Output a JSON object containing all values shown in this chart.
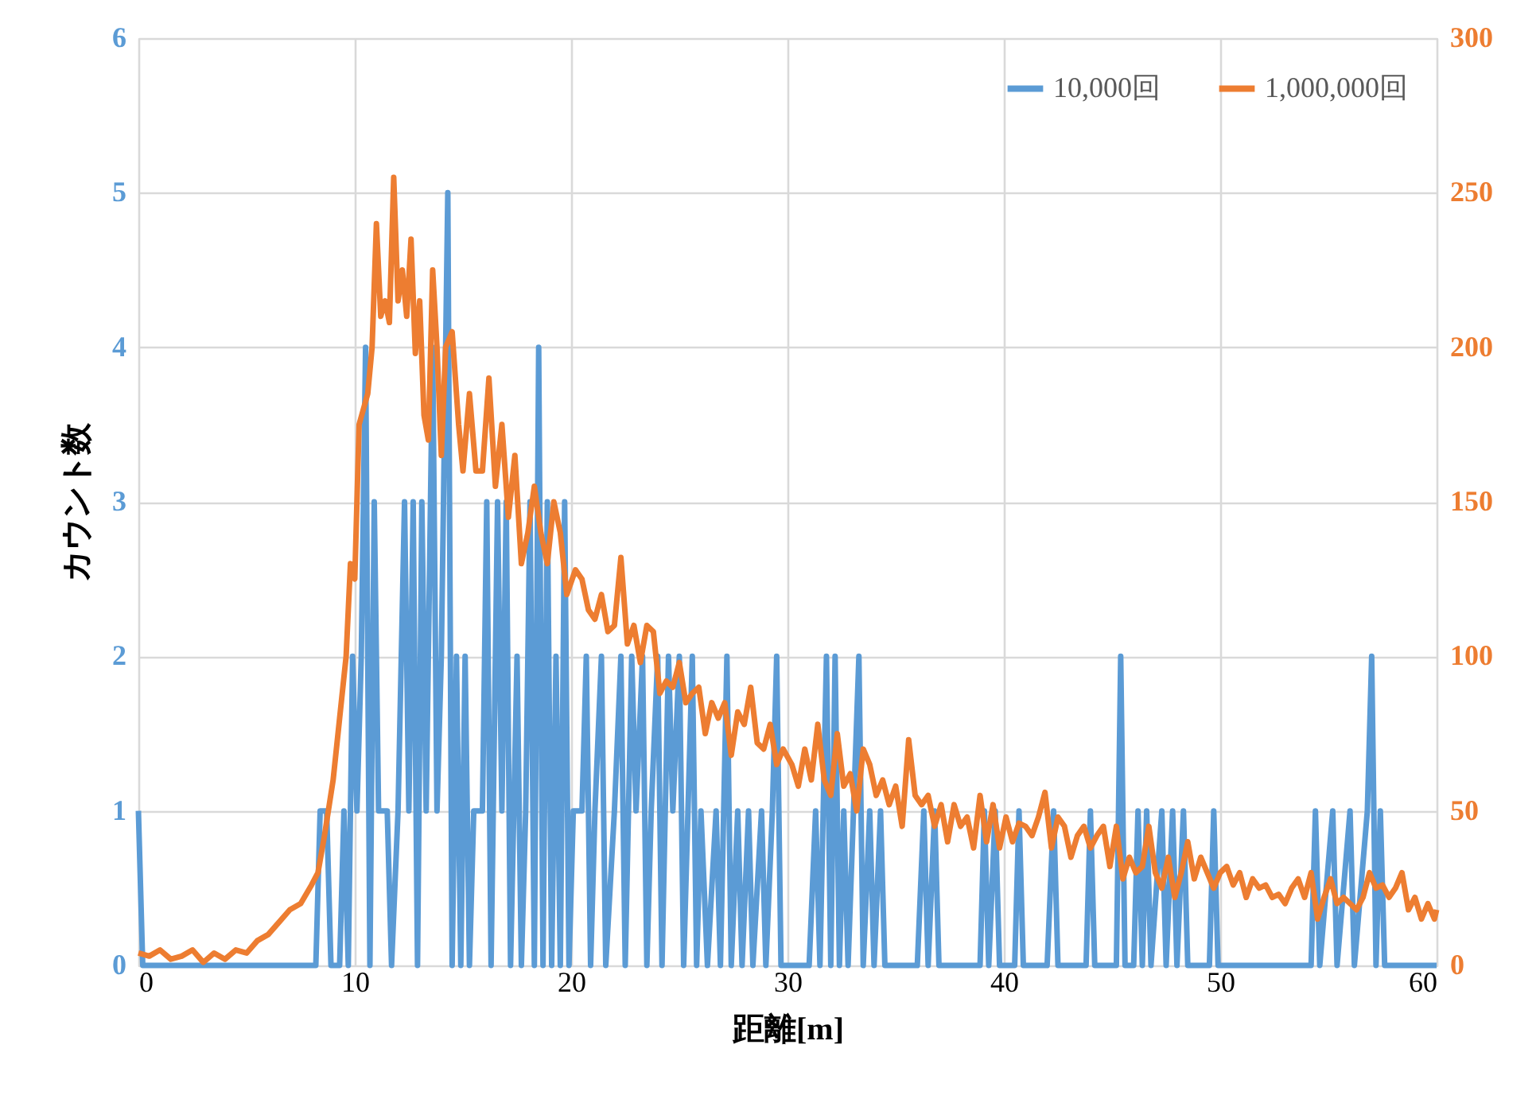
{
  "chart_data": {
    "type": "line",
    "xlabel": "距離[m]",
    "ylabel": "カウント数",
    "xlim": [
      0,
      60
    ],
    "xticks": [
      0,
      10,
      20,
      30,
      40,
      50,
      60
    ],
    "ylim": [
      0,
      6
    ],
    "yticks": [
      0,
      1,
      2,
      3,
      4,
      5,
      6
    ],
    "y2lim": [
      0,
      300
    ],
    "y2ticks": [
      0,
      50,
      100,
      150,
      200,
      250,
      300
    ],
    "grid": true,
    "legend": "top right",
    "marker": "none",
    "line_style": "solid",
    "series": [
      {
        "name": "10,000回",
        "color": "#5b9bd5",
        "x": [
          0,
          0.2,
          8.2,
          8.4,
          8.7,
          8.9,
          9.3,
          9.5,
          9.7,
          9.9,
          10.1,
          10.3,
          10.5,
          10.7,
          10.9,
          11.1,
          11.5,
          11.7,
          12.0,
          12.3,
          12.5,
          12.7,
          12.9,
          13.1,
          13.3,
          13.6,
          13.8,
          14.0,
          14.3,
          14.5,
          14.7,
          14.9,
          15.1,
          15.3,
          15.5,
          15.9,
          16.1,
          16.3,
          16.6,
          16.8,
          17.0,
          17.2,
          17.5,
          17.7,
          17.9,
          18.1,
          18.3,
          18.5,
          18.7,
          18.9,
          19.1,
          19.3,
          19.5,
          19.7,
          19.9,
          20.1,
          20.5,
          20.7,
          20.9,
          21.1,
          21.4,
          21.6,
          22.0,
          22.3,
          22.5,
          22.8,
          23.0,
          23.3,
          23.5,
          23.7,
          24.0,
          24.2,
          24.5,
          24.7,
          25.0,
          25.2,
          25.6,
          25.8,
          26.0,
          26.3,
          26.7,
          26.9,
          27.2,
          27.4,
          27.7,
          27.9,
          28.2,
          28.4,
          28.8,
          29.0,
          29.3,
          29.5,
          29.7,
          31.0,
          31.3,
          31.5,
          31.8,
          32.0,
          32.2,
          32.4,
          32.6,
          32.8,
          33.3,
          33.5,
          33.8,
          34.0,
          34.3,
          34.5,
          36.0,
          36.3,
          36.5,
          36.8,
          37.0,
          38.9,
          39.1,
          39.3,
          39.6,
          39.8,
          40.5,
          40.7,
          40.9,
          42.0,
          42.3,
          42.5,
          43.8,
          44.0,
          44.2,
          45.2,
          45.4,
          45.6,
          46.0,
          46.2,
          46.4,
          46.6,
          46.8,
          47.3,
          47.5,
          47.8,
          48.0,
          48.3,
          48.5,
          49.5,
          49.7,
          49.9,
          54.2,
          54.4,
          54.6,
          55.2,
          55.4,
          56.0,
          56.2,
          56.8,
          57.0,
          57.2,
          57.4,
          57.6,
          60
        ],
        "values": [
          1,
          0,
          0,
          1,
          1,
          0,
          0,
          1,
          0,
          2,
          1,
          2,
          4,
          0,
          3,
          1,
          1,
          0,
          1,
          3,
          1,
          3,
          0,
          3,
          1,
          4,
          1,
          2,
          5,
          0,
          2,
          0,
          2,
          0,
          1,
          1,
          3,
          0,
          3,
          1,
          3,
          0,
          2,
          0,
          1,
          3,
          0,
          4,
          0,
          3,
          0,
          2,
          0,
          3,
          0,
          1,
          1,
          2,
          0,
          1,
          2,
          0,
          1,
          2,
          0,
          2,
          1,
          2,
          0,
          1,
          2,
          0,
          2,
          1,
          2,
          0,
          2,
          0,
          1,
          0,
          1,
          0,
          2,
          0,
          1,
          0,
          1,
          0,
          1,
          0,
          1,
          2,
          0,
          0,
          1,
          0,
          2,
          0,
          2,
          0,
          1,
          0,
          2,
          0,
          1,
          0,
          1,
          0,
          0,
          1,
          0,
          1,
          0,
          0,
          1,
          0,
          1,
          0,
          0,
          1,
          0,
          0,
          1,
          0,
          0,
          1,
          0,
          0,
          2,
          0,
          0,
          1,
          0,
          1,
          0,
          1,
          0,
          1,
          0,
          1,
          0,
          0,
          1,
          0,
          0,
          1,
          0,
          1,
          0,
          1,
          0,
          1,
          2,
          0,
          1,
          0,
          0
        ]
      },
      {
        "name": "1,000,000回",
        "color": "#ed7d31",
        "axis": "y2",
        "x": [
          0,
          0.5,
          1,
          1.5,
          2,
          2.5,
          3,
          3.5,
          4,
          4.5,
          5,
          5.5,
          6,
          6.5,
          7,
          7.5,
          8,
          8.3,
          8.6,
          9,
          9.3,
          9.6,
          9.8,
          10,
          10.2,
          10.4,
          10.6,
          10.8,
          11,
          11.2,
          11.4,
          11.6,
          11.8,
          12,
          12.2,
          12.4,
          12.6,
          12.8,
          13,
          13.2,
          13.4,
          13.6,
          13.8,
          14,
          14.2,
          14.5,
          14.8,
          15,
          15.3,
          15.6,
          15.9,
          16.2,
          16.5,
          16.8,
          17.1,
          17.4,
          17.7,
          18,
          18.3,
          18.6,
          18.9,
          19.2,
          19.5,
          19.8,
          20.2,
          20.5,
          20.8,
          21.1,
          21.4,
          21.7,
          22,
          22.3,
          22.6,
          22.9,
          23.2,
          23.5,
          23.8,
          24.1,
          24.4,
          24.7,
          25,
          25.3,
          25.6,
          25.9,
          26.2,
          26.5,
          26.8,
          27.1,
          27.4,
          27.7,
          28,
          28.3,
          28.6,
          28.9,
          29.2,
          29.5,
          29.8,
          30.2,
          30.5,
          30.8,
          31.1,
          31.4,
          31.7,
          32,
          32.3,
          32.6,
          32.9,
          33.2,
          33.5,
          33.8,
          34.1,
          34.4,
          34.7,
          35,
          35.3,
          35.6,
          35.9,
          36.2,
          36.5,
          36.8,
          37.1,
          37.4,
          37.7,
          38,
          38.3,
          38.6,
          38.9,
          39.2,
          39.5,
          39.8,
          40.1,
          40.4,
          40.7,
          41,
          41.3,
          41.6,
          41.9,
          42.2,
          42.5,
          42.8,
          43.1,
          43.4,
          43.7,
          44,
          44.3,
          44.6,
          44.9,
          45.2,
          45.5,
          45.8,
          46.1,
          46.4,
          46.7,
          47,
          47.3,
          47.6,
          47.9,
          48.2,
          48.5,
          48.8,
          49.1,
          49.4,
          49.7,
          50,
          50.3,
          50.6,
          50.9,
          51.2,
          51.5,
          51.8,
          52.1,
          52.4,
          52.7,
          53,
          53.3,
          53.6,
          53.9,
          54.2,
          54.5,
          54.8,
          55.1,
          55.4,
          55.7,
          56,
          56.3,
          56.6,
          56.9,
          57.2,
          57.5,
          57.8,
          58.1,
          58.4,
          58.7,
          59,
          59.3,
          59.6,
          59.9,
          60
        ],
        "values": [
          4,
          3,
          5,
          2,
          3,
          5,
          1,
          4,
          2,
          5,
          4,
          8,
          10,
          14,
          18,
          20,
          26,
          30,
          42,
          60,
          80,
          100,
          130,
          125,
          175,
          180,
          185,
          200,
          240,
          210,
          215,
          208,
          255,
          215,
          225,
          210,
          235,
          198,
          215,
          178,
          170,
          225,
          200,
          165,
          200,
          205,
          175,
          160,
          185,
          160,
          160,
          190,
          155,
          175,
          145,
          165,
          130,
          140,
          155,
          140,
          130,
          150,
          140,
          120,
          128,
          125,
          115,
          112,
          120,
          108,
          110,
          132,
          104,
          110,
          98,
          110,
          108,
          88,
          92,
          90,
          98,
          85,
          88,
          90,
          75,
          85,
          80,
          85,
          68,
          82,
          78,
          90,
          72,
          70,
          78,
          65,
          70,
          65,
          58,
          70,
          60,
          78,
          60,
          55,
          75,
          58,
          62,
          50,
          70,
          65,
          55,
          60,
          52,
          58,
          45,
          73,
          55,
          52,
          55,
          45,
          52,
          40,
          52,
          45,
          48,
          38,
          55,
          40,
          52,
          38,
          48,
          40,
          46,
          45,
          42,
          48,
          56,
          38,
          48,
          45,
          35,
          42,
          45,
          38,
          42,
          45,
          32,
          45,
          28,
          35,
          30,
          32,
          45,
          30,
          25,
          35,
          22,
          30,
          40,
          28,
          35,
          30,
          25,
          30,
          32,
          26,
          30,
          22,
          28,
          25,
          26,
          22,
          23,
          20,
          25,
          28,
          22,
          30,
          15,
          22,
          28,
          20,
          22,
          20,
          18,
          22,
          30,
          25,
          26,
          22,
          25,
          30,
          18,
          22,
          15,
          20,
          15,
          18
        ]
      }
    ]
  }
}
